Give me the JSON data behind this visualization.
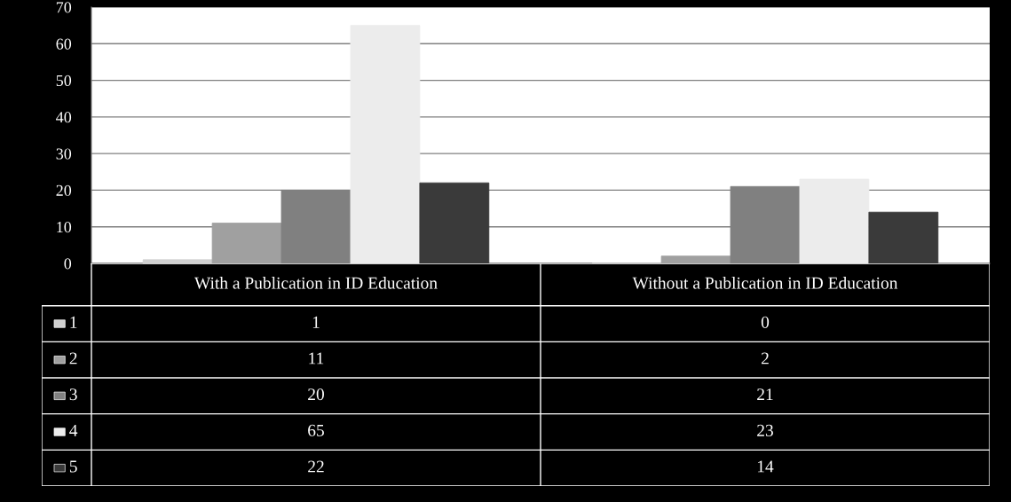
{
  "chart_data": {
    "type": "bar",
    "categories": [
      "With a Publication in ID Education",
      "Without a Publication in ID Education"
    ],
    "series": [
      {
        "name": "1",
        "color": "#d0d0d0",
        "values": [
          1,
          0
        ]
      },
      {
        "name": "2",
        "color": "#a0a0a0",
        "values": [
          11,
          2
        ]
      },
      {
        "name": "3",
        "color": "#808080",
        "values": [
          20,
          21
        ]
      },
      {
        "name": "4",
        "color": "#ececec",
        "values": [
          65,
          23
        ]
      },
      {
        "name": "5",
        "color": "#3a3a3a",
        "values": [
          22,
          14
        ]
      }
    ],
    "ylim": [
      0,
      70
    ],
    "yticks": [
      0,
      10,
      20,
      30,
      40,
      50,
      60,
      70
    ],
    "grid": "y",
    "data_labels": true,
    "legend": "bottom"
  }
}
